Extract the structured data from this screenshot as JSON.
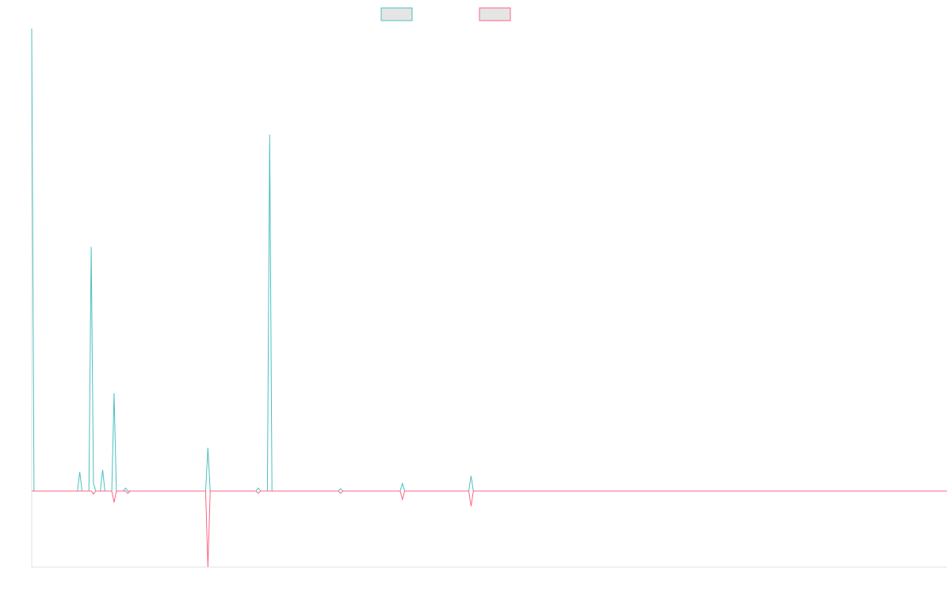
{
  "colors": {
    "series_teal": "#4bc0c0",
    "series_pink": "#ff6384",
    "legend_fill": "#e5e5e5",
    "axis": "#e0e0e0",
    "background": "#ffffff"
  },
  "chart_data": {
    "type": "line",
    "title": "",
    "xlabel": "",
    "ylabel": "",
    "grid": false,
    "legend_position": "top-center",
    "x": [
      0,
      1,
      2,
      3,
      4,
      5,
      6,
      7,
      8,
      9,
      10,
      11,
      12,
      13,
      14,
      15,
      16,
      17,
      18,
      19,
      20,
      21,
      22,
      23,
      24,
      25,
      26,
      27,
      28,
      29,
      30,
      31,
      32,
      33,
      34,
      35,
      36,
      37,
      38,
      39,
      40,
      41,
      42,
      43,
      44,
      45,
      46,
      47,
      48,
      49,
      50,
      51,
      52,
      53,
      54,
      55,
      56,
      57,
      58,
      59,
      60,
      61,
      62,
      63,
      64,
      65,
      66,
      67,
      68,
      69,
      70,
      71,
      72,
      73,
      74,
      75,
      76,
      77,
      78,
      79,
      80,
      81,
      82,
      83,
      84,
      85,
      86,
      87,
      88,
      89,
      90,
      91,
      92,
      93,
      94,
      95,
      96,
      97,
      98,
      99,
      100,
      101,
      102,
      103,
      104,
      105,
      106,
      107,
      108,
      109,
      110,
      111,
      112,
      113,
      114,
      115,
      116,
      117,
      118,
      119,
      120,
      121,
      122,
      123,
      124,
      125,
      126,
      127,
      128,
      129,
      130,
      131,
      132,
      133,
      134,
      135,
      136,
      137,
      138,
      139,
      140,
      141,
      142,
      143,
      144,
      145,
      146,
      147,
      148,
      149,
      150,
      151,
      152,
      153,
      154,
      155,
      156,
      157,
      158,
      159,
      160,
      161,
      162,
      163,
      164,
      165,
      166,
      167,
      168,
      169,
      170,
      171,
      172,
      173,
      174,
      175,
      176,
      177,
      178,
      179,
      180,
      181,
      182,
      183,
      184,
      185,
      186,
      187,
      188,
      189,
      190,
      191,
      192,
      193,
      194,
      195,
      196,
      197,
      198,
      199,
      200,
      201,
      202,
      203,
      204,
      205,
      206,
      207,
      208,
      209,
      210,
      211,
      212,
      213,
      214,
      215,
      216,
      217,
      218,
      219,
      220,
      221,
      222,
      223,
      224,
      225,
      226,
      227,
      228,
      229,
      230,
      231,
      232,
      233,
      234,
      235,
      236,
      237,
      238,
      239,
      240,
      241,
      242,
      243,
      244,
      245,
      246,
      247,
      248,
      249,
      250,
      251,
      252,
      253,
      254,
      255,
      256,
      257,
      258,
      259,
      260,
      261,
      262,
      263,
      264,
      265,
      266,
      267,
      268,
      269,
      270,
      271,
      272,
      273,
      274,
      275,
      276,
      277,
      278,
      279,
      280,
      281,
      282,
      283,
      284,
      285,
      286,
      287,
      288,
      289,
      290,
      291,
      292,
      293,
      294,
      295,
      296,
      297,
      298,
      299,
      300,
      301,
      302,
      303,
      304,
      305,
      306,
      307,
      308,
      309,
      310,
      311,
      312,
      313,
      314,
      315,
      316,
      317,
      318,
      319,
      320,
      321,
      322,
      323,
      324,
      325,
      326,
      327,
      328,
      329,
      330,
      331,
      332,
      333,
      334,
      335,
      336,
      337,
      338,
      339,
      340,
      341,
      342,
      343,
      344,
      345,
      346,
      347,
      348,
      349,
      350,
      351,
      352,
      353,
      354,
      355,
      356,
      357,
      358,
      359,
      360,
      361,
      362,
      363,
      364,
      365,
      366,
      367,
      368,
      369,
      370,
      371,
      372,
      373,
      374,
      375,
      376,
      377,
      378,
      379,
      380,
      381,
      382,
      383,
      384,
      385,
      386,
      387,
      388,
      389,
      390,
      391,
      392,
      393,
      394,
      395,
      396,
      397,
      398,
      399,
      400
    ],
    "xlim": [
      0,
      400
    ],
    "ylim": [
      -100,
      610
    ],
    "series": [
      {
        "color": "#4bc0c0",
        "points": [
          [
            0,
            610
          ],
          [
            1,
            0
          ],
          [
            20,
            0
          ],
          [
            21,
            25
          ],
          [
            22,
            0
          ],
          [
            25,
            0
          ],
          [
            26,
            322
          ],
          [
            27,
            10
          ],
          [
            28,
            0
          ],
          [
            30,
            0
          ],
          [
            31,
            28
          ],
          [
            32,
            0
          ],
          [
            35,
            0
          ],
          [
            36,
            129
          ],
          [
            37,
            0
          ],
          [
            40,
            0
          ],
          [
            41,
            4
          ],
          [
            42,
            0
          ],
          [
            76,
            0
          ],
          [
            77,
            57
          ],
          [
            78,
            0
          ],
          [
            98,
            0
          ],
          [
            99,
            4
          ],
          [
            100,
            0
          ],
          [
            103,
            0
          ],
          [
            104,
            470
          ],
          [
            105,
            0
          ],
          [
            134,
            0
          ],
          [
            135,
            3
          ],
          [
            136,
            0
          ],
          [
            161,
            0
          ],
          [
            162,
            10
          ],
          [
            163,
            0
          ],
          [
            191,
            0
          ],
          [
            192,
            20
          ],
          [
            193,
            0
          ],
          [
            400,
            0
          ]
        ]
      },
      {
        "color": "#ff6384",
        "points": [
          [
            0,
            0
          ],
          [
            26,
            0
          ],
          [
            27,
            -4
          ],
          [
            28,
            0
          ],
          [
            35,
            0
          ],
          [
            36,
            -15
          ],
          [
            37,
            0
          ],
          [
            41,
            0
          ],
          [
            42,
            -3
          ],
          [
            43,
            0
          ],
          [
            76,
            0
          ],
          [
            77,
            -100
          ],
          [
            78,
            0
          ],
          [
            98,
            0
          ],
          [
            99,
            -3
          ],
          [
            100,
            0
          ],
          [
            134,
            0
          ],
          [
            135,
            -3
          ],
          [
            136,
            0
          ],
          [
            161,
            0
          ],
          [
            162,
            -11
          ],
          [
            163,
            0
          ],
          [
            191,
            0
          ],
          [
            192,
            -20
          ],
          [
            193,
            0
          ],
          [
            400,
            0
          ]
        ]
      }
    ]
  }
}
